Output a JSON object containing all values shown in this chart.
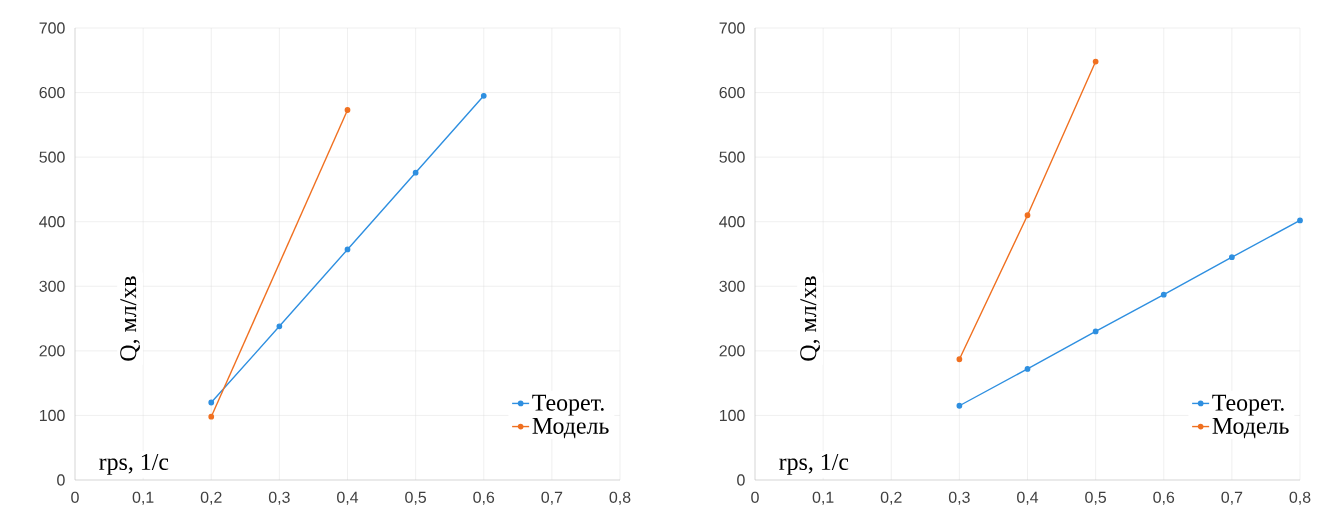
{
  "chart_data": [
    {
      "type": "line",
      "xlabel": "rps, 1/с",
      "ylabel": "Q, мл/хв",
      "xlim": [
        0,
        0.8
      ],
      "ylim": [
        0,
        700
      ],
      "xticks": [
        0,
        {
          "value": 0.1,
          "label": "0,1"
        },
        {
          "value": 0.2,
          "label": "0,2"
        },
        {
          "value": 0.3,
          "label": "0,3"
        },
        {
          "value": 0.4,
          "label": "0,4"
        },
        {
          "value": 0.5,
          "label": "0,5"
        },
        {
          "value": 0.6,
          "label": "0,6"
        },
        {
          "value": 0.7,
          "label": "0,7"
        },
        {
          "value": 0.8,
          "label": "0,8"
        }
      ],
      "yticks": [
        0,
        100,
        200,
        300,
        400,
        500,
        600,
        700
      ],
      "grid": true,
      "legend": "bottom right",
      "marker": "circle",
      "series": [
        {
          "name": "Теорет.",
          "color": "#2e8fe0",
          "x": [
            0.2,
            0.3,
            0.4,
            0.5,
            0.6
          ],
          "values": [
            120,
            238,
            357,
            476,
            595
          ]
        },
        {
          "name": "Модель",
          "color": "#f07020",
          "x": [
            0.2,
            0.4
          ],
          "values": [
            98,
            573
          ]
        }
      ]
    },
    {
      "type": "line",
      "xlabel": "rps, 1/с",
      "ylabel": "Q, мл/хв",
      "xlim": [
        0,
        0.8
      ],
      "ylim": [
        0,
        700
      ],
      "xticks": [
        0,
        {
          "value": 0.1,
          "label": "0,1"
        },
        {
          "value": 0.2,
          "label": "0,2"
        },
        {
          "value": 0.3,
          "label": "0,3"
        },
        {
          "value": 0.4,
          "label": "0,4"
        },
        {
          "value": 0.5,
          "label": "0,5"
        },
        {
          "value": 0.6,
          "label": "0,6"
        },
        {
          "value": 0.7,
          "label": "0,7"
        },
        {
          "value": 0.8,
          "label": "0,8"
        }
      ],
      "yticks": [
        0,
        100,
        200,
        300,
        400,
        500,
        600,
        700
      ],
      "grid": true,
      "legend": "bottom right",
      "marker": "circle",
      "series": [
        {
          "name": "Теорет.",
          "color": "#2e8fe0",
          "x": [
            0.3,
            0.4,
            0.5,
            0.6,
            0.7,
            0.8
          ],
          "values": [
            115,
            172,
            230,
            287,
            345,
            402
          ]
        },
        {
          "name": "Модель",
          "color": "#f07020",
          "x": [
            0.3,
            0.4,
            0.5
          ],
          "values": [
            187,
            410,
            648
          ]
        }
      ]
    }
  ]
}
